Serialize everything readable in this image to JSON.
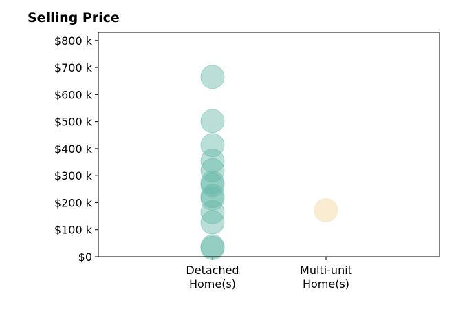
{
  "chart_data": {
    "type": "scatter",
    "title": "Selling Price",
    "xlabel": "",
    "ylabel": "",
    "categories": [
      [
        "Detached",
        "Home(s)"
      ],
      [
        "Multi-unit",
        "Home(s)"
      ]
    ],
    "ylim": [
      0,
      830000
    ],
    "yticks": [
      0,
      100000,
      200000,
      300000,
      400000,
      500000,
      600000,
      700000,
      800000
    ],
    "ytick_labels": [
      "$0",
      "$100 k",
      "$200 k",
      "$300 k",
      "$400 k",
      "$500 k",
      "$600 k",
      "$700 k",
      "$800 k"
    ],
    "grid": false,
    "series": [
      {
        "category": "Detached\nHome(s)",
        "color": "#66b8a8",
        "values": [
          665000,
          502000,
          413000,
          355000,
          320000,
          275000,
          265000,
          225000,
          215000,
          165000,
          127000,
          38000,
          32000
        ]
      },
      {
        "category": "Multi-unit\nHome(s)",
        "color": "#f5dfb3",
        "values": [
          172000
        ]
      }
    ]
  }
}
